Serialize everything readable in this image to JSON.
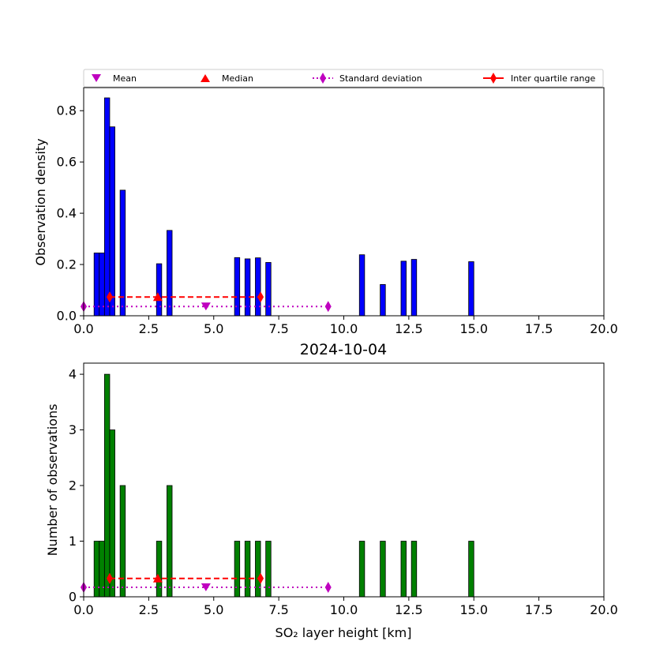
{
  "chart_data": [
    {
      "type": "bar",
      "ylabel": "Observation density",
      "xlim": [
        0,
        20
      ],
      "ylim": [
        0,
        0.89
      ],
      "xticks": [
        "0.0",
        "2.5",
        "5.0",
        "7.5",
        "10.0",
        "12.5",
        "15.0",
        "17.5",
        "20.0"
      ],
      "yticks": [
        "0.0",
        "0.2",
        "0.4",
        "0.6",
        "0.8"
      ],
      "bar_color": "#0000ff",
      "bin_width": 0.2,
      "bars": [
        {
          "x": 0.4,
          "value": 0.245
        },
        {
          "x": 0.6,
          "value": 0.245
        },
        {
          "x": 0.8,
          "value": 0.85
        },
        {
          "x": 1.0,
          "value": 0.737
        },
        {
          "x": 1.4,
          "value": 0.49
        },
        {
          "x": 2.8,
          "value": 0.203
        },
        {
          "x": 3.2,
          "value": 0.333
        },
        {
          "x": 5.8,
          "value": 0.227
        },
        {
          "x": 6.2,
          "value": 0.222
        },
        {
          "x": 6.6,
          "value": 0.226
        },
        {
          "x": 7.0,
          "value": 0.208
        },
        {
          "x": 10.6,
          "value": 0.238
        },
        {
          "x": 11.4,
          "value": 0.122
        },
        {
          "x": 12.2,
          "value": 0.213
        },
        {
          "x": 12.6,
          "value": 0.22
        },
        {
          "x": 14.8,
          "value": 0.211
        }
      ],
      "stats": {
        "mean": {
          "x": 4.7,
          "y": 0.036
        },
        "std": {
          "x": [
            0.0,
            9.4
          ],
          "y": 0.036
        },
        "median": {
          "x": 2.85,
          "y": 0.073
        },
        "iqr": {
          "x": [
            1.0,
            6.8
          ],
          "y": 0.073
        }
      }
    },
    {
      "type": "bar",
      "title": "2024-10-04",
      "xlabel": "SO₂ layer height [km]",
      "ylabel": "Number of observations",
      "xlim": [
        0,
        20
      ],
      "ylim": [
        0,
        4.2
      ],
      "xticks": [
        "0.0",
        "2.5",
        "5.0",
        "7.5",
        "10.0",
        "12.5",
        "15.0",
        "17.5",
        "20.0"
      ],
      "yticks": [
        "0",
        "1",
        "2",
        "3",
        "4"
      ],
      "bar_color": "#008000",
      "bin_width": 0.2,
      "bars": [
        {
          "x": 0.4,
          "value": 1
        },
        {
          "x": 0.6,
          "value": 1
        },
        {
          "x": 0.8,
          "value": 4
        },
        {
          "x": 1.0,
          "value": 3
        },
        {
          "x": 1.4,
          "value": 2
        },
        {
          "x": 2.8,
          "value": 1
        },
        {
          "x": 3.2,
          "value": 2
        },
        {
          "x": 5.8,
          "value": 1
        },
        {
          "x": 6.2,
          "value": 1
        },
        {
          "x": 6.6,
          "value": 1
        },
        {
          "x": 7.0,
          "value": 1
        },
        {
          "x": 10.6,
          "value": 1
        },
        {
          "x": 11.4,
          "value": 1
        },
        {
          "x": 12.2,
          "value": 1
        },
        {
          "x": 12.6,
          "value": 1
        },
        {
          "x": 14.8,
          "value": 1
        }
      ],
      "stats": {
        "mean": {
          "x": 4.7,
          "y": 0.17
        },
        "std": {
          "x": [
            0.0,
            9.4
          ],
          "y": 0.17
        },
        "median": {
          "x": 2.85,
          "y": 0.33
        },
        "iqr": {
          "x": [
            1.0,
            6.8
          ],
          "y": 0.33
        }
      }
    }
  ],
  "legend": {
    "placement": "top",
    "entries": [
      {
        "label": "Mean",
        "marker": "triangle-down",
        "color": "#bf00bf"
      },
      {
        "label": "Median",
        "marker": "triangle-up",
        "color": "#ff0000"
      },
      {
        "label": "Standard deviation",
        "marker": "diamond",
        "line": "dotted",
        "color": "#bf00bf"
      },
      {
        "label": "Inter quartile range",
        "marker": "diamond",
        "line": "solid",
        "color": "#ff0000"
      }
    ]
  }
}
